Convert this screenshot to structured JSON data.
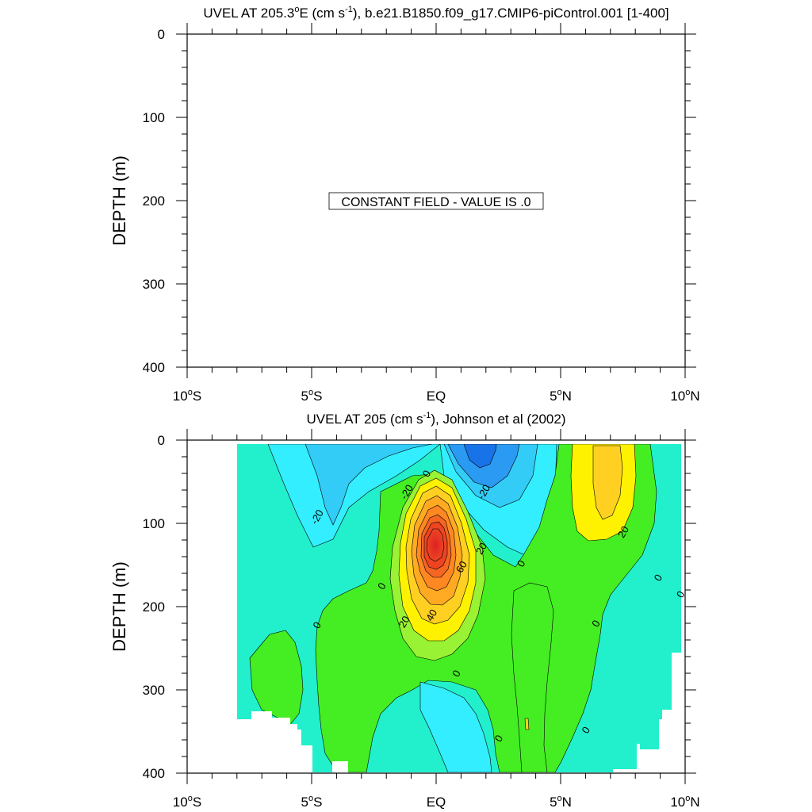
{
  "chart_data": [
    {
      "type": "contour",
      "title_main": "UVEL AT 205.3",
      "title_sup": "o",
      "title_unit_pre": "E (cm s",
      "title_unit_sup": "-1",
      "title_post": "), b.e21.B1850.f09_g17.CMIP6-piControl.001 [1-400]",
      "ylabel": "DEPTH (m)",
      "ylim": [
        0,
        400
      ],
      "yticks": [
        "0",
        "100",
        "200",
        "300",
        "400"
      ],
      "xlim": [
        -10,
        10
      ],
      "xticks": [
        {
          "label": "10",
          "sup": "o",
          "suffix": "S"
        },
        {
          "label": "5",
          "sup": "o",
          "suffix": "S"
        },
        {
          "label": "EQ",
          "sup": "",
          "suffix": ""
        },
        {
          "label": "5",
          "sup": "o",
          "suffix": "N"
        },
        {
          "label": "10",
          "sup": "o",
          "suffix": "N"
        }
      ],
      "annotation": "CONSTANT FIELD - VALUE IS .0",
      "grid": false
    },
    {
      "type": "contour",
      "title_main": "UVEL AT 205 (cm s",
      "title_sup": "-1",
      "title_post": "), Johnson et al (2002)",
      "ylabel": "DEPTH (m)",
      "ylim": [
        0,
        400
      ],
      "yticks": [
        "0",
        "100",
        "200",
        "300",
        "400"
      ],
      "xlim": [
        -10,
        10
      ],
      "xticks": [
        {
          "label": "10",
          "sup": "o",
          "suffix": "S"
        },
        {
          "label": "5",
          "sup": "o",
          "suffix": "S"
        },
        {
          "label": "EQ",
          "sup": "",
          "suffix": ""
        },
        {
          "label": "5",
          "sup": "o",
          "suffix": "N"
        },
        {
          "label": "10",
          "sup": "o",
          "suffix": "N"
        }
      ],
      "grid": false,
      "levels": [
        -60,
        -50,
        -40,
        -30,
        -20,
        -10,
        0,
        10,
        20,
        30,
        40,
        50,
        60,
        70,
        80,
        90
      ],
      "colors": {
        "below_-40": "#1873e8",
        "-40_-30": "#2a9af2",
        "-30_-20": "#33ccf7",
        "-20_-10": "#33eeff",
        "-10_0": "#22f0cc",
        "0_10": "#44ee22",
        "10_20": "#99f233",
        "20_30": "#fff200",
        "30_40": "#ffd022",
        "40_50": "#ffaa22",
        "50_60": "#ff8822",
        "60_70": "#f56622",
        "70_80": "#ee4422",
        "above_80": "#dd2222"
      },
      "features": [
        {
          "name": "equatorial-undercurrent-core",
          "lat": 0,
          "depth": 130,
          "max": 90
        },
        {
          "name": "south-equatorial-current-surface",
          "lat": 2.5,
          "depth": 10,
          "min": -50
        },
        {
          "name": "north-equatorial-countercurrent",
          "lat": 7,
          "depth": 50,
          "max": 30
        }
      ],
      "contour_labels": [
        {
          "text": "-20",
          "lat": -4.8,
          "depth": 92
        },
        {
          "text": "-20",
          "lat": -1.2,
          "depth": 62
        },
        {
          "text": "0",
          "lat": -0.4,
          "depth": 40
        },
        {
          "text": "-20",
          "lat": 1.9,
          "depth": 62
        },
        {
          "text": "20",
          "lat": 7.5,
          "depth": 110
        },
        {
          "text": "20",
          "lat": 1.8,
          "depth": 130
        },
        {
          "text": "60",
          "lat": 1.0,
          "depth": 152
        },
        {
          "text": "0",
          "lat": 3.4,
          "depth": 148
        },
        {
          "text": "0",
          "lat": -2.2,
          "depth": 175
        },
        {
          "text": "40",
          "lat": -0.2,
          "depth": 210
        },
        {
          "text": "20",
          "lat": -1.3,
          "depth": 218
        },
        {
          "text": "0",
          "lat": -4.8,
          "depth": 222
        },
        {
          "text": "0",
          "lat": 8.9,
          "depth": 165
        },
        {
          "text": "0",
          "lat": 9.8,
          "depth": 185
        },
        {
          "text": "0",
          "lat": 6.4,
          "depth": 220
        },
        {
          "text": "0",
          "lat": 0.8,
          "depth": 280
        },
        {
          "text": "0",
          "lat": 2.5,
          "depth": 358
        },
        {
          "text": "0",
          "lat": 6.0,
          "depth": 348
        }
      ]
    }
  ]
}
